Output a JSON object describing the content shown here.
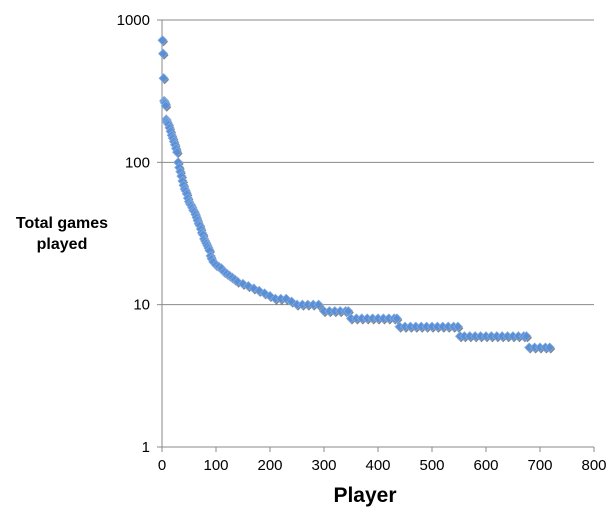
{
  "chart_data": {
    "type": "scatter",
    "xlabel": "Player",
    "ylabel": "Total games\nplayed",
    "xlim": [
      0,
      800
    ],
    "ylim": [
      1,
      1000
    ],
    "y_scale": "log",
    "grid": "horizontal",
    "marker_color": "#5b8fd4",
    "x_ticks": [
      "0",
      "100",
      "200",
      "300",
      "400",
      "500",
      "600",
      "700",
      "800"
    ],
    "y_ticks": [
      "1",
      "10",
      "100",
      "1000"
    ],
    "series": [
      {
        "marker": "diamond",
        "points": [
          [
            1,
            720
          ],
          [
            2,
            580
          ],
          [
            3,
            390
          ],
          [
            4,
            270
          ],
          [
            5,
            265
          ],
          [
            6,
            260
          ],
          [
            7,
            250
          ],
          [
            8,
            200
          ],
          [
            9,
            195
          ],
          [
            10,
            190
          ],
          [
            12,
            185
          ],
          [
            14,
            175
          ],
          [
            16,
            165
          ],
          [
            18,
            155
          ],
          [
            20,
            148
          ],
          [
            22,
            140
          ],
          [
            24,
            133
          ],
          [
            26,
            125
          ],
          [
            28,
            118
          ],
          [
            30,
            100
          ],
          [
            32,
            92
          ],
          [
            34,
            86
          ],
          [
            36,
            80
          ],
          [
            38,
            74
          ],
          [
            40,
            69
          ],
          [
            42,
            65
          ],
          [
            44,
            63
          ],
          [
            46,
            60
          ],
          [
            48,
            56
          ],
          [
            50,
            53
          ],
          [
            52,
            51
          ],
          [
            54,
            50
          ],
          [
            56,
            48
          ],
          [
            58,
            46
          ],
          [
            60,
            45
          ],
          [
            62,
            43
          ],
          [
            64,
            41
          ],
          [
            66,
            39
          ],
          [
            68,
            37
          ],
          [
            70,
            36
          ],
          [
            72,
            34
          ],
          [
            74,
            32
          ],
          [
            76,
            31
          ],
          [
            78,
            29
          ],
          [
            80,
            28
          ],
          [
            82,
            27
          ],
          [
            84,
            26
          ],
          [
            86,
            25
          ],
          [
            88,
            24
          ],
          [
            90,
            22
          ],
          [
            92,
            21
          ],
          [
            95,
            20
          ],
          [
            100,
            19
          ],
          [
            105,
            18.5
          ],
          [
            110,
            18
          ],
          [
            115,
            17
          ],
          [
            120,
            16.5
          ],
          [
            125,
            16
          ],
          [
            130,
            15.5
          ],
          [
            135,
            15
          ],
          [
            140,
            14.5
          ],
          [
            150,
            14
          ],
          [
            160,
            13.5
          ],
          [
            170,
            13
          ],
          [
            180,
            12.5
          ],
          [
            190,
            12
          ],
          [
            200,
            11.5
          ],
          [
            210,
            11
          ],
          [
            220,
            11
          ],
          [
            230,
            11
          ],
          [
            240,
            10.5
          ],
          [
            250,
            10
          ],
          [
            260,
            10
          ],
          [
            270,
            10
          ],
          [
            280,
            10
          ],
          [
            290,
            10
          ],
          [
            300,
            9
          ],
          [
            310,
            9
          ],
          [
            320,
            9
          ],
          [
            330,
            9
          ],
          [
            340,
            9
          ],
          [
            345,
            9
          ],
          [
            350,
            8
          ],
          [
            360,
            8
          ],
          [
            370,
            8
          ],
          [
            380,
            8
          ],
          [
            390,
            8
          ],
          [
            400,
            8
          ],
          [
            410,
            8
          ],
          [
            420,
            8
          ],
          [
            430,
            8
          ],
          [
            435,
            8
          ],
          [
            440,
            7
          ],
          [
            450,
            7
          ],
          [
            460,
            7
          ],
          [
            470,
            7
          ],
          [
            480,
            7
          ],
          [
            490,
            7
          ],
          [
            500,
            7
          ],
          [
            510,
            7
          ],
          [
            520,
            7
          ],
          [
            530,
            7
          ],
          [
            540,
            7
          ],
          [
            548,
            7
          ],
          [
            552,
            6
          ],
          [
            560,
            6
          ],
          [
            570,
            6
          ],
          [
            580,
            6
          ],
          [
            590,
            6
          ],
          [
            600,
            6
          ],
          [
            610,
            6
          ],
          [
            620,
            6
          ],
          [
            630,
            6
          ],
          [
            640,
            6
          ],
          [
            650,
            6
          ],
          [
            660,
            6
          ],
          [
            670,
            6
          ],
          [
            675,
            6
          ],
          [
            680,
            5
          ],
          [
            690,
            5
          ],
          [
            700,
            5
          ],
          [
            710,
            5
          ],
          [
            718,
            5
          ]
        ]
      }
    ]
  }
}
